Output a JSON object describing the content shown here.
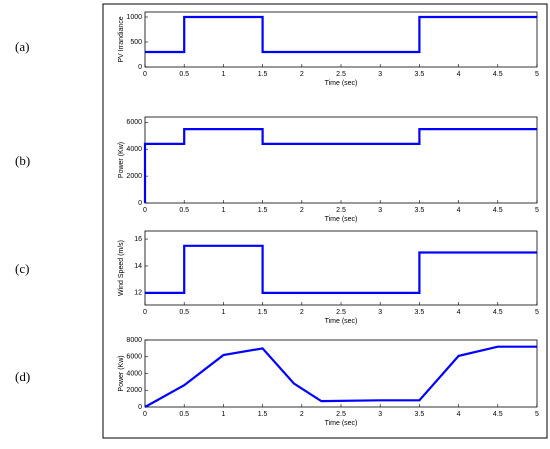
{
  "chart_data": [
    {
      "type": "line",
      "panel_label": "(a)",
      "ylabel": "PV Irrandiance",
      "xlabel": "Time (sec)",
      "series": [
        {
          "color": "#0000ff",
          "x": [
            0,
            0.5,
            0.5,
            1.5,
            1.5,
            3.5,
            3.5,
            5
          ],
          "values": [
            300,
            300,
            1000,
            1000,
            300,
            300,
            1000,
            1000
          ]
        }
      ],
      "xlim": [
        0,
        5
      ],
      "xticks": [
        0,
        0.5,
        1,
        1.5,
        2,
        2.5,
        3,
        3.5,
        4,
        4.5,
        5
      ],
      "ylim": [
        0,
        1100
      ],
      "yticks": [
        0,
        500,
        1000
      ]
    },
    {
      "type": "line",
      "panel_label": "(b)",
      "ylabel": "Power (Kw)",
      "xlabel": "Time (sec)",
      "series": [
        {
          "color": "#0000ff",
          "x": [
            0,
            0,
            0.5,
            0.5,
            1.5,
            1.5,
            3.5,
            3.5,
            5
          ],
          "values": [
            0,
            4400,
            4400,
            5500,
            5500,
            4400,
            4400,
            5500,
            5500
          ]
        }
      ],
      "xlim": [
        0,
        5
      ],
      "xticks": [
        0,
        0.5,
        1,
        1.5,
        2,
        2.5,
        3,
        3.5,
        4,
        4.5,
        5
      ],
      "ylim": [
        0,
        6400
      ],
      "yticks": [
        0,
        2000,
        4000,
        6000
      ]
    },
    {
      "type": "line",
      "panel_label": "(c)",
      "ylabel": "Wind Speed (m/s)",
      "xlabel": "Time (sec)",
      "series": [
        {
          "color": "#0000ff",
          "x": [
            0,
            0.5,
            0.5,
            1.5,
            1.5,
            3.5,
            3.5,
            5
          ],
          "values": [
            12,
            12,
            15.5,
            15.5,
            12,
            12,
            15,
            15
          ]
        }
      ],
      "xlim": [
        0,
        5
      ],
      "xticks": [
        0,
        0.5,
        1,
        1.5,
        2,
        2.5,
        3,
        3.5,
        4,
        4.5,
        5
      ],
      "ylim": [
        11.1,
        16.6
      ],
      "yticks": [
        12,
        14,
        16
      ]
    },
    {
      "type": "line",
      "panel_label": "(d)",
      "ylabel": "Power (Kw)",
      "xlabel": "Time (sec)",
      "series": [
        {
          "color": "#0000ff",
          "x": [
            0,
            0.5,
            1,
            1.5,
            1.9,
            2.25,
            3,
            3.5,
            4,
            4.5,
            5
          ],
          "values": [
            0,
            2600,
            6200,
            7000,
            2800,
            700,
            800,
            800,
            6100,
            7200,
            7200
          ]
        }
      ],
      "xlim": [
        0,
        5
      ],
      "xticks": [
        0,
        0.5,
        1,
        1.5,
        2,
        2.5,
        3,
        3.5,
        4,
        4.5,
        5
      ],
      "ylim": [
        0,
        8000
      ],
      "yticks": [
        0,
        2000,
        4000,
        6000,
        8000
      ]
    }
  ]
}
